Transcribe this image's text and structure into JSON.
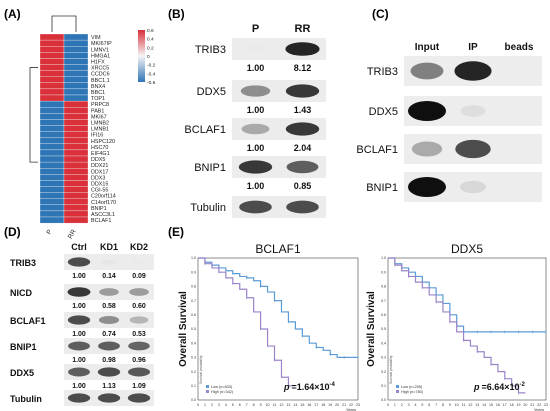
{
  "panels": {
    "A": {
      "letter": "(A)",
      "genes": [
        "VIM",
        "MKI67IP",
        "LMNV1",
        "HMGA1",
        "H1FX",
        "XRCC5",
        "CCDC6",
        "BBC1.1",
        "BNX4",
        "BBC1",
        "TOP1",
        "PRPC8",
        "PAB1",
        "MKI67",
        "LMNB2",
        "LMNB1",
        "IFI16",
        "HSPC120",
        "HSC70",
        "EIF4G1",
        "DDX5",
        "DDX21",
        "DDX17",
        "DDX3",
        "DDX15",
        "CGI-55",
        "C20orf114",
        "C14orf170",
        "BNIP1",
        "ASCC3L1",
        "BCLAF1"
      ],
      "upper_rows": 11,
      "columns": [
        "P",
        "RR"
      ],
      "scale_labels": [
        "0.6",
        "0.4",
        "0.2",
        "0",
        "-0.2",
        "-0.4",
        "-0.6"
      ],
      "colors": {
        "high": "#d9303a",
        "low": "#2e75b6",
        "mid": "#f4f4f4"
      }
    },
    "B": {
      "letter": "(B)",
      "cols": [
        "P",
        "RR"
      ],
      "rows": [
        {
          "name": "TRIB3",
          "values": [
            "1.00",
            "8.12"
          ],
          "left": 0.1,
          "right": 0.95
        },
        {
          "name": "DDX5",
          "values": [
            "1.00",
            "1.43"
          ],
          "left": 0.65,
          "right": 0.9
        },
        {
          "name": "BCLAF1",
          "values": [
            "1.00",
            "2.04"
          ],
          "left": 0.55,
          "right": 0.9
        },
        {
          "name": "BNIP1",
          "values": [
            "1.00",
            "0.85"
          ],
          "left": 0.9,
          "right": 0.8
        },
        {
          "name": "Tubulin",
          "values": [
            "",
            ""
          ],
          "left": 0.85,
          "right": 0.85
        }
      ]
    },
    "C": {
      "letter": "(C)",
      "cols": [
        "Input",
        "IP",
        "beads"
      ],
      "rows": [
        {
          "name": "TRIB3",
          "levels": [
            0.7,
            0.95,
            0.0
          ]
        },
        {
          "name": "DDX5",
          "levels": [
            1.0,
            0.25,
            0.0
          ]
        },
        {
          "name": "BCLAF1",
          "levels": [
            0.55,
            0.85,
            0.0
          ]
        },
        {
          "name": "BNIP1",
          "levels": [
            1.0,
            0.3,
            0.0
          ]
        }
      ]
    },
    "D": {
      "letter": "(D)",
      "cols": [
        "Ctrl",
        "KD1",
        "KD2"
      ],
      "rows": [
        {
          "name": "TRIB3",
          "values": [
            "1.00",
            "0.14",
            "0.09"
          ],
          "levels": [
            0.85,
            0.15,
            0.1
          ]
        },
        {
          "name": "NICD",
          "values": [
            "1.00",
            "0.58",
            "0.60"
          ],
          "levels": [
            0.9,
            0.6,
            0.6
          ]
        },
        {
          "name": "BCLAF1",
          "values": [
            "1.00",
            "0.74",
            "0.53"
          ],
          "levels": [
            0.85,
            0.65,
            0.5
          ]
        },
        {
          "name": "BNIP1",
          "values": [
            "1.00",
            "0.98",
            "0.96"
          ],
          "levels": [
            0.8,
            0.8,
            0.78
          ]
        },
        {
          "name": "DDX5",
          "values": [
            "1.00",
            "1.13",
            "1.09"
          ],
          "levels": [
            0.8,
            0.85,
            0.82
          ]
        },
        {
          "name": "Tubulin",
          "values": [
            "",
            "",
            ""
          ],
          "levels": [
            0.85,
            0.85,
            0.85
          ]
        }
      ]
    },
    "E": {
      "letter": "(E)",
      "ylabel": "Overall Survival",
      "plots": [
        {
          "title": "BCLAF1",
          "p_prefix": "p",
          "p_value": "=1.64×10",
          "p_exp": "-4",
          "legend": [
            "Low (n=833)",
            "High (n=342)"
          ],
          "xaxis": "Years",
          "yaxis_inner": "Survival probability",
          "x_ticks": [
            "0",
            "1",
            "2",
            "3",
            "4",
            "5",
            "6",
            "7",
            "8",
            "9",
            "10",
            "11",
            "12",
            "13",
            "14",
            "15",
            "16",
            "17",
            "18",
            "19",
            "20",
            "21",
            "22",
            "23"
          ],
          "y_ticks": [
            "0.0",
            "0.1",
            "0.2",
            "0.3",
            "0.4",
            "0.5",
            "0.6",
            "0.7",
            "0.8",
            "0.9",
            "1.0"
          ],
          "series": [
            {
              "name": "Low",
              "color": "#5b9bd5",
              "x": [
                0,
                1,
                2,
                3,
                4,
                5,
                6,
                7,
                8,
                9,
                10,
                11,
                12,
                13,
                14,
                15,
                16,
                17,
                18,
                19,
                20,
                21,
                22,
                23
              ],
              "y": [
                1.0,
                0.97,
                0.95,
                0.93,
                0.91,
                0.89,
                0.87,
                0.86,
                0.84,
                0.8,
                0.76,
                0.7,
                0.62,
                0.55,
                0.5,
                0.45,
                0.4,
                0.37,
                0.35,
                0.32,
                0.3,
                0.3,
                0.3,
                0.3
              ]
            },
            {
              "name": "High",
              "color": "#9b84c9",
              "x": [
                0,
                1,
                2,
                3,
                4,
                5,
                6,
                7,
                8,
                9,
                10,
                11,
                12,
                13,
                14
              ],
              "y": [
                1.0,
                0.96,
                0.93,
                0.9,
                0.86,
                0.82,
                0.78,
                0.72,
                0.62,
                0.5,
                0.38,
                0.28,
                0.16,
                0.1,
                0.1
              ]
            }
          ]
        },
        {
          "title": "DDX5",
          "p_prefix": "p",
          "p_value": "=6.64×10",
          "p_exp": "-2",
          "legend": [
            "Low (n=295)",
            "High (n=780)"
          ],
          "xaxis": "Years",
          "yaxis_inner": "Survival probability",
          "x_ticks": [
            "0",
            "1",
            "2",
            "3",
            "4",
            "5",
            "6",
            "7",
            "8",
            "9",
            "10",
            "11",
            "12",
            "13",
            "14",
            "15",
            "16",
            "17",
            "18",
            "19",
            "20",
            "21",
            "22",
            "23"
          ],
          "y_ticks": [
            "0.0",
            "0.1",
            "0.2",
            "0.3",
            "0.4",
            "0.5",
            "0.6",
            "0.7",
            "0.8",
            "0.9",
            "1.0"
          ],
          "series": [
            {
              "name": "Low",
              "color": "#5b9bd5",
              "x": [
                0,
                1,
                2,
                3,
                4,
                5,
                6,
                7,
                8,
                9,
                10,
                11,
                12,
                13,
                14,
                15,
                16,
                17,
                18,
                19,
                20,
                21,
                22,
                23
              ],
              "y": [
                1.0,
                0.96,
                0.93,
                0.9,
                0.87,
                0.83,
                0.79,
                0.74,
                0.68,
                0.6,
                0.52,
                0.48,
                0.48,
                0.48,
                0.48,
                0.48,
                0.48,
                0.48,
                0.48,
                0.48,
                0.48,
                0.48,
                0.48,
                0.48
              ]
            },
            {
              "name": "High",
              "color": "#9b84c9",
              "x": [
                0,
                1,
                2,
                3,
                4,
                5,
                6,
                7,
                8,
                9,
                10,
                11,
                12,
                13,
                14,
                15,
                16,
                17,
                18,
                19,
                20
              ],
              "y": [
                1.0,
                0.95,
                0.91,
                0.87,
                0.83,
                0.79,
                0.74,
                0.69,
                0.62,
                0.55,
                0.48,
                0.42,
                0.38,
                0.34,
                0.3,
                0.25,
                0.2,
                0.15,
                0.1,
                0.05,
                0.05
              ]
            }
          ]
        }
      ]
    }
  }
}
